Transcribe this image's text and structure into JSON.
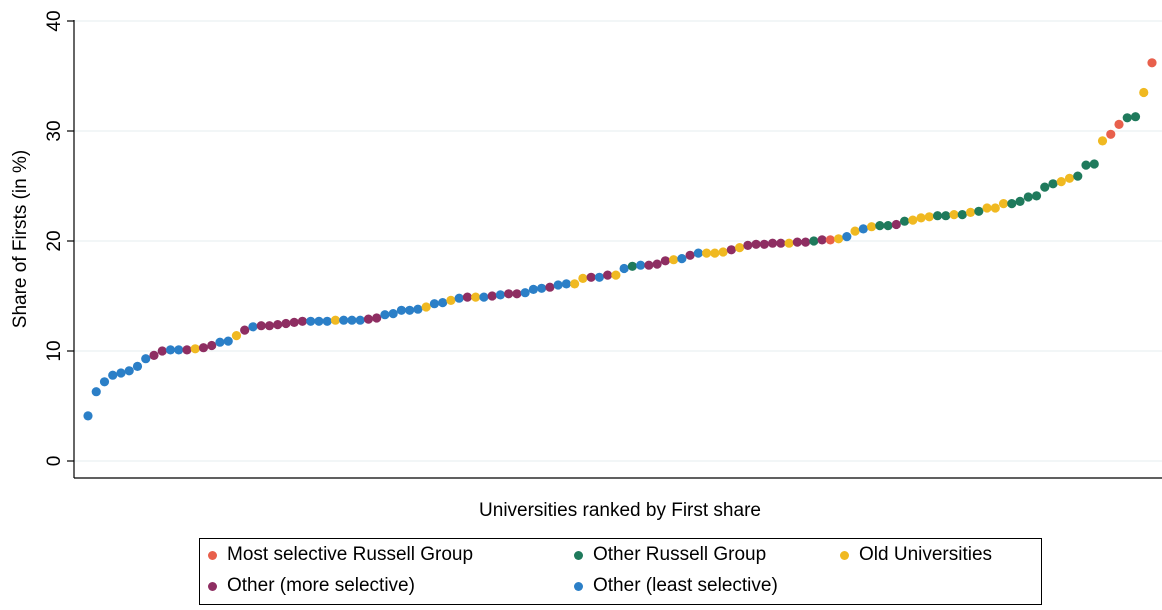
{
  "chart_data": {
    "type": "scatter",
    "title": "",
    "xlabel": "Universities ranked by First share",
    "ylabel": "Share of Firsts (in %)",
    "ylim": [
      0,
      40
    ],
    "yticks": [
      0,
      10,
      20,
      30,
      40
    ],
    "grid": "horizontal",
    "legend_position": "bottom",
    "series": [
      {
        "key": "mr",
        "name": "Most selective Russell Group",
        "color": "#E8604C"
      },
      {
        "key": "or",
        "name": "Other Russell Group",
        "color": "#1F7A5C"
      },
      {
        "key": "ou",
        "name": "Old Universities",
        "color": "#F0B921"
      },
      {
        "key": "om",
        "name": "Other (more selective)",
        "color": "#8E2E62"
      },
      {
        "key": "ol",
        "name": "Other (least selective)",
        "color": "#2B7FC7"
      }
    ],
    "points": [
      {
        "x": 1,
        "y": 4.1,
        "s": "ol"
      },
      {
        "x": 2,
        "y": 6.3,
        "s": "ol"
      },
      {
        "x": 3,
        "y": 7.2,
        "s": "ol"
      },
      {
        "x": 4,
        "y": 7.8,
        "s": "ol"
      },
      {
        "x": 5,
        "y": 8.0,
        "s": "ol"
      },
      {
        "x": 6,
        "y": 8.2,
        "s": "ol"
      },
      {
        "x": 7,
        "y": 8.6,
        "s": "ol"
      },
      {
        "x": 8,
        "y": 9.3,
        "s": "ol"
      },
      {
        "x": 9,
        "y": 9.6,
        "s": "om"
      },
      {
        "x": 10,
        "y": 10.0,
        "s": "om"
      },
      {
        "x": 11,
        "y": 10.1,
        "s": "ol"
      },
      {
        "x": 12,
        "y": 10.1,
        "s": "ol"
      },
      {
        "x": 13,
        "y": 10.1,
        "s": "om"
      },
      {
        "x": 14,
        "y": 10.2,
        "s": "ou"
      },
      {
        "x": 15,
        "y": 10.3,
        "s": "om"
      },
      {
        "x": 16,
        "y": 10.5,
        "s": "om"
      },
      {
        "x": 17,
        "y": 10.8,
        "s": "ol"
      },
      {
        "x": 18,
        "y": 10.9,
        "s": "ol"
      },
      {
        "x": 19,
        "y": 11.4,
        "s": "ou"
      },
      {
        "x": 20,
        "y": 11.9,
        "s": "om"
      },
      {
        "x": 21,
        "y": 12.2,
        "s": "ol"
      },
      {
        "x": 22,
        "y": 12.3,
        "s": "om"
      },
      {
        "x": 23,
        "y": 12.3,
        "s": "om"
      },
      {
        "x": 24,
        "y": 12.4,
        "s": "om"
      },
      {
        "x": 25,
        "y": 12.5,
        "s": "om"
      },
      {
        "x": 26,
        "y": 12.6,
        "s": "om"
      },
      {
        "x": 27,
        "y": 12.7,
        "s": "om"
      },
      {
        "x": 28,
        "y": 12.7,
        "s": "ol"
      },
      {
        "x": 29,
        "y": 12.7,
        "s": "ol"
      },
      {
        "x": 30,
        "y": 12.7,
        "s": "ol"
      },
      {
        "x": 31,
        "y": 12.8,
        "s": "ou"
      },
      {
        "x": 32,
        "y": 12.8,
        "s": "ol"
      },
      {
        "x": 33,
        "y": 12.8,
        "s": "ol"
      },
      {
        "x": 34,
        "y": 12.8,
        "s": "ol"
      },
      {
        "x": 35,
        "y": 12.9,
        "s": "om"
      },
      {
        "x": 36,
        "y": 13.0,
        "s": "om"
      },
      {
        "x": 37,
        "y": 13.3,
        "s": "ol"
      },
      {
        "x": 38,
        "y": 13.4,
        "s": "ol"
      },
      {
        "x": 39,
        "y": 13.7,
        "s": "ol"
      },
      {
        "x": 40,
        "y": 13.7,
        "s": "ol"
      },
      {
        "x": 41,
        "y": 13.8,
        "s": "ol"
      },
      {
        "x": 42,
        "y": 14.0,
        "s": "ou"
      },
      {
        "x": 43,
        "y": 14.3,
        "s": "ol"
      },
      {
        "x": 44,
        "y": 14.4,
        "s": "ol"
      },
      {
        "x": 45,
        "y": 14.6,
        "s": "ou"
      },
      {
        "x": 46,
        "y": 14.8,
        "s": "ol"
      },
      {
        "x": 47,
        "y": 14.9,
        "s": "om"
      },
      {
        "x": 48,
        "y": 14.9,
        "s": "ou"
      },
      {
        "x": 49,
        "y": 14.9,
        "s": "ol"
      },
      {
        "x": 50,
        "y": 15.0,
        "s": "om"
      },
      {
        "x": 51,
        "y": 15.1,
        "s": "ol"
      },
      {
        "x": 52,
        "y": 15.2,
        "s": "om"
      },
      {
        "x": 53,
        "y": 15.2,
        "s": "om"
      },
      {
        "x": 54,
        "y": 15.3,
        "s": "ol"
      },
      {
        "x": 55,
        "y": 15.6,
        "s": "ol"
      },
      {
        "x": 56,
        "y": 15.7,
        "s": "ol"
      },
      {
        "x": 57,
        "y": 15.8,
        "s": "om"
      },
      {
        "x": 58,
        "y": 16.0,
        "s": "ol"
      },
      {
        "x": 59,
        "y": 16.1,
        "s": "ol"
      },
      {
        "x": 60,
        "y": 16.1,
        "s": "ou"
      },
      {
        "x": 61,
        "y": 16.6,
        "s": "ou"
      },
      {
        "x": 62,
        "y": 16.7,
        "s": "om"
      },
      {
        "x": 63,
        "y": 16.7,
        "s": "ol"
      },
      {
        "x": 64,
        "y": 16.9,
        "s": "om"
      },
      {
        "x": 65,
        "y": 16.9,
        "s": "ou"
      },
      {
        "x": 66,
        "y": 17.5,
        "s": "ol"
      },
      {
        "x": 67,
        "y": 17.7,
        "s": "or"
      },
      {
        "x": 68,
        "y": 17.8,
        "s": "ol"
      },
      {
        "x": 69,
        "y": 17.8,
        "s": "om"
      },
      {
        "x": 70,
        "y": 17.9,
        "s": "om"
      },
      {
        "x": 71,
        "y": 18.2,
        "s": "om"
      },
      {
        "x": 72,
        "y": 18.3,
        "s": "ou"
      },
      {
        "x": 73,
        "y": 18.4,
        "s": "ol"
      },
      {
        "x": 74,
        "y": 18.7,
        "s": "om"
      },
      {
        "x": 75,
        "y": 18.9,
        "s": "ol"
      },
      {
        "x": 76,
        "y": 18.9,
        "s": "ou"
      },
      {
        "x": 77,
        "y": 18.9,
        "s": "ou"
      },
      {
        "x": 78,
        "y": 19.0,
        "s": "ou"
      },
      {
        "x": 79,
        "y": 19.2,
        "s": "om"
      },
      {
        "x": 80,
        "y": 19.4,
        "s": "ou"
      },
      {
        "x": 81,
        "y": 19.6,
        "s": "om"
      },
      {
        "x": 82,
        "y": 19.7,
        "s": "om"
      },
      {
        "x": 83,
        "y": 19.7,
        "s": "om"
      },
      {
        "x": 84,
        "y": 19.8,
        "s": "om"
      },
      {
        "x": 85,
        "y": 19.8,
        "s": "om"
      },
      {
        "x": 86,
        "y": 19.8,
        "s": "ou"
      },
      {
        "x": 87,
        "y": 19.9,
        "s": "om"
      },
      {
        "x": 88,
        "y": 19.9,
        "s": "om"
      },
      {
        "x": 89,
        "y": 20.0,
        "s": "or"
      },
      {
        "x": 90,
        "y": 20.1,
        "s": "om"
      },
      {
        "x": 91,
        "y": 20.1,
        "s": "mr"
      },
      {
        "x": 92,
        "y": 20.2,
        "s": "ou"
      },
      {
        "x": 93,
        "y": 20.4,
        "s": "ol"
      },
      {
        "x": 94,
        "y": 20.9,
        "s": "ou"
      },
      {
        "x": 95,
        "y": 21.1,
        "s": "ol"
      },
      {
        "x": 96,
        "y": 21.3,
        "s": "ou"
      },
      {
        "x": 97,
        "y": 21.4,
        "s": "or"
      },
      {
        "x": 98,
        "y": 21.4,
        "s": "or"
      },
      {
        "x": 99,
        "y": 21.5,
        "s": "om"
      },
      {
        "x": 100,
        "y": 21.8,
        "s": "or"
      },
      {
        "x": 101,
        "y": 21.9,
        "s": "ou"
      },
      {
        "x": 102,
        "y": 22.1,
        "s": "ou"
      },
      {
        "x": 103,
        "y": 22.2,
        "s": "ou"
      },
      {
        "x": 104,
        "y": 22.3,
        "s": "or"
      },
      {
        "x": 105,
        "y": 22.3,
        "s": "or"
      },
      {
        "x": 106,
        "y": 22.4,
        "s": "ou"
      },
      {
        "x": 107,
        "y": 22.4,
        "s": "or"
      },
      {
        "x": 108,
        "y": 22.6,
        "s": "ou"
      },
      {
        "x": 109,
        "y": 22.7,
        "s": "or"
      },
      {
        "x": 110,
        "y": 23.0,
        "s": "ou"
      },
      {
        "x": 111,
        "y": 23.0,
        "s": "ou"
      },
      {
        "x": 112,
        "y": 23.4,
        "s": "ou"
      },
      {
        "x": 113,
        "y": 23.4,
        "s": "or"
      },
      {
        "x": 114,
        "y": 23.6,
        "s": "or"
      },
      {
        "x": 115,
        "y": 24.0,
        "s": "or"
      },
      {
        "x": 116,
        "y": 24.1,
        "s": "or"
      },
      {
        "x": 117,
        "y": 24.9,
        "s": "or"
      },
      {
        "x": 118,
        "y": 25.2,
        "s": "or"
      },
      {
        "x": 119,
        "y": 25.4,
        "s": "ou"
      },
      {
        "x": 120,
        "y": 25.7,
        "s": "ou"
      },
      {
        "x": 121,
        "y": 25.9,
        "s": "or"
      },
      {
        "x": 122,
        "y": 26.9,
        "s": "or"
      },
      {
        "x": 123,
        "y": 27.0,
        "s": "or"
      },
      {
        "x": 124,
        "y": 29.1,
        "s": "ou"
      },
      {
        "x": 125,
        "y": 29.7,
        "s": "mr"
      },
      {
        "x": 126,
        "y": 30.6,
        "s": "mr"
      },
      {
        "x": 127,
        "y": 31.2,
        "s": "or"
      },
      {
        "x": 128,
        "y": 31.3,
        "s": "or"
      },
      {
        "x": 129,
        "y": 33.5,
        "s": "ou"
      },
      {
        "x": 130,
        "y": 36.2,
        "s": "mr"
      }
    ]
  }
}
